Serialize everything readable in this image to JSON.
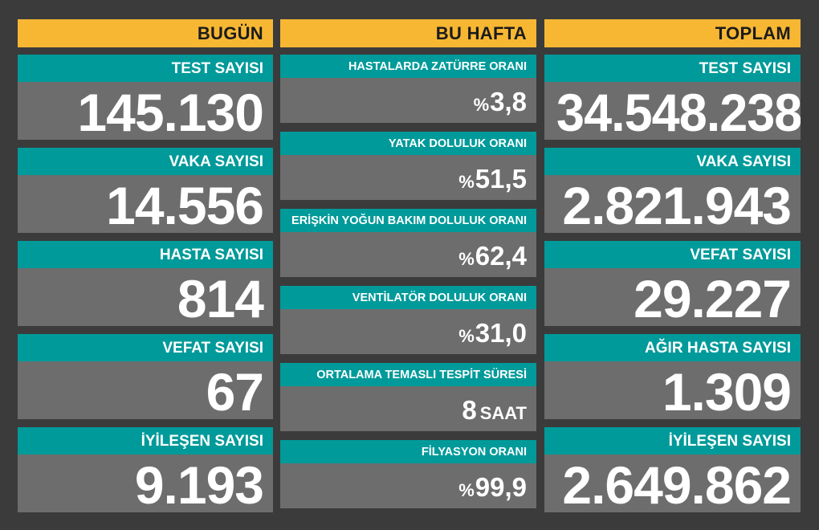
{
  "today": {
    "header": "BUGÜN",
    "cards": [
      {
        "label": "TEST SAYISI",
        "value": "145.130"
      },
      {
        "label": "VAKA SAYISI",
        "value": "14.556"
      },
      {
        "label": "HASTA SAYISI",
        "value": "814"
      },
      {
        "label": "VEFAT SAYISI",
        "value": "67"
      },
      {
        "label": "İYİLEŞEN SAYISI",
        "value": "9.193"
      }
    ]
  },
  "week": {
    "header": "BU HAFTA",
    "cards": [
      {
        "label": "HASTALARDA ZATÜRRE ORANI",
        "prefix": "%",
        "value": "3,8"
      },
      {
        "label": "YATAK DOLULUK ORANI",
        "prefix": "%",
        "value": "51,5"
      },
      {
        "label": "ERİŞKİN YOĞUN BAKIM DOLULUK ORANI",
        "prefix": "%",
        "value": "62,4"
      },
      {
        "label": "VENTİLATÖR DOLULUK ORANI",
        "prefix": "%",
        "value": "31,0"
      },
      {
        "label": "ORTALAMA TEMASLI TESPİT SÜRESİ",
        "value": "8",
        "unit": "SAAT"
      },
      {
        "label": "FİLYASYON ORANI",
        "prefix": "%",
        "value": "99,9"
      }
    ]
  },
  "total": {
    "header": "TOPLAM",
    "cards": [
      {
        "label": "TEST SAYISI",
        "value": "34.548.238"
      },
      {
        "label": "VAKA SAYISI",
        "value": "2.821.943"
      },
      {
        "label": "VEFAT SAYISI",
        "value": "29.227"
      },
      {
        "label": "AĞIR HASTA SAYISI",
        "value": "1.309"
      },
      {
        "label": "İYİLEŞEN SAYISI",
        "value": "2.649.862"
      }
    ]
  },
  "colors": {
    "background": "#3b3b3b",
    "header": "#f7b733",
    "label_bar": "#009a9a",
    "value_panel": "#6d6d6d",
    "text": "#ffffff"
  }
}
